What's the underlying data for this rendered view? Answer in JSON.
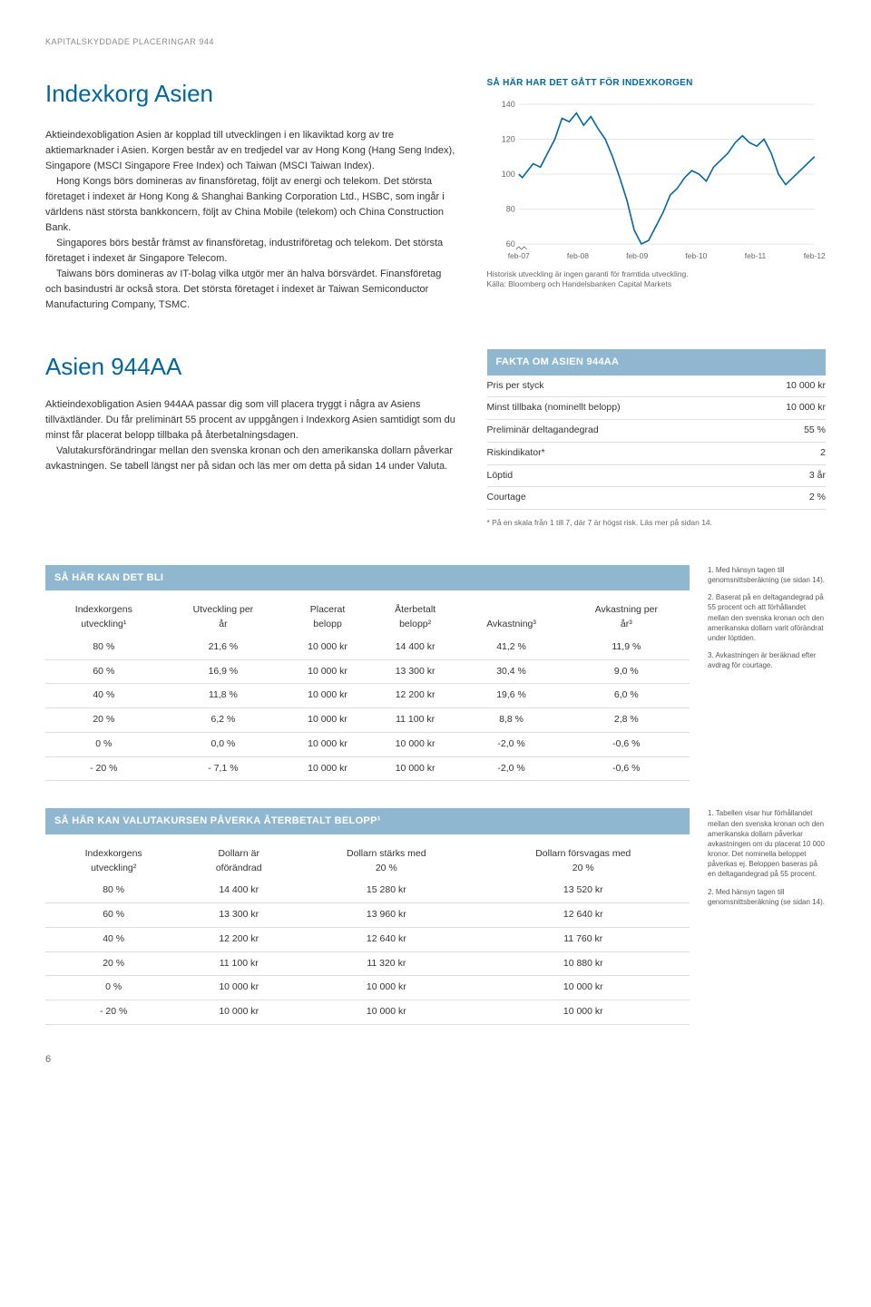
{
  "header": "KAPITALSKYDDADE PLACERINGAR 944",
  "top": {
    "title": "Indexkorg Asien",
    "p1": "Aktieindexobligation Asien är kopplad till utvecklingen i en likaviktad korg av tre aktiemarknader i Asien. Korgen består av en tredjedel var av Hong Kong (Hang Seng Index), Singapore (MSCI Singapore Free Index) och Taiwan (MSCI Taiwan Index).",
    "p2": "Hong Kongs börs domineras av finansföretag, följt av energi och telekom. Det största företaget i indexet är Hong Kong & Shanghai Banking Corporation Ltd., HSBC, som ingår i världens näst största bankkoncern, följt av China Mobile (telekom) och China Construction Bank.",
    "p3": "Singapores börs består främst av finansföretag, industriföretag och telekom. Det största företaget i indexet är Singapore Telecom.",
    "p4": "Taiwans börs domineras av IT-bolag vilka utgör mer än halva börsvärdet. Finansföretag och basindustri är också stora. Det största företaget i indexet är Taiwan Semiconductor Manufacturing Company, TSMC."
  },
  "chart": {
    "label": "SÅ HÄR HAR DET GÅTT FÖR INDEXKORGEN",
    "y_ticks": [
      60,
      80,
      100,
      120,
      140
    ],
    "x_labels": [
      "feb-07",
      "feb-08",
      "feb-09",
      "feb-10",
      "feb-11",
      "feb-12"
    ],
    "line_color": "#0066a4",
    "grid_color": "#cccccc",
    "points": [
      [
        0,
        100
      ],
      [
        2,
        98
      ],
      [
        5,
        102
      ],
      [
        8,
        106
      ],
      [
        12,
        104
      ],
      [
        16,
        112
      ],
      [
        20,
        120
      ],
      [
        24,
        132
      ],
      [
        28,
        130
      ],
      [
        32,
        135
      ],
      [
        36,
        128
      ],
      [
        40,
        133
      ],
      [
        44,
        126
      ],
      [
        48,
        120
      ],
      [
        52,
        110
      ],
      [
        56,
        98
      ],
      [
        60,
        85
      ],
      [
        64,
        68
      ],
      [
        68,
        60
      ],
      [
        72,
        62
      ],
      [
        76,
        70
      ],
      [
        80,
        78
      ],
      [
        84,
        88
      ],
      [
        88,
        92
      ],
      [
        92,
        98
      ],
      [
        96,
        102
      ],
      [
        100,
        100
      ],
      [
        104,
        96
      ],
      [
        108,
        104
      ],
      [
        112,
        108
      ],
      [
        116,
        112
      ],
      [
        120,
        118
      ],
      [
        124,
        122
      ],
      [
        128,
        118
      ],
      [
        132,
        116
      ],
      [
        136,
        120
      ],
      [
        140,
        112
      ],
      [
        144,
        100
      ],
      [
        148,
        94
      ],
      [
        152,
        98
      ],
      [
        156,
        102
      ],
      [
        160,
        106
      ],
      [
        164,
        110
      ]
    ],
    "caption1": "Historisk utveckling är ingen garanti för framtida utveckling.",
    "caption2": "Källa: Bloomberg och Handelsbanken Capital Markets"
  },
  "mid": {
    "title": "Asien 944AA",
    "p1": "Aktieindexobligation Asien 944AA passar dig som vill placera tryggt i några av Asiens tillväxtländer. Du får preliminärt 55 procent av uppgången i Indexkorg Asien samtidigt som du minst får placerat belopp tillbaka på återbetalningsdagen.",
    "p2": "Valutakursförändringar mellan den svenska kronan och den amerikanska dollarn påverkar avkastningen. Se tabell längst ner på sidan och läs mer om detta på sidan 14 under Valuta."
  },
  "facts": {
    "header": "FAKTA OM ASIEN 944AA",
    "rows": [
      {
        "label": "Pris per styck",
        "value": "10 000 kr"
      },
      {
        "label": "Minst tillbaka (nominellt belopp)",
        "value": "10 000 kr"
      },
      {
        "label": "Preliminär deltagandegrad",
        "value": "55 %"
      },
      {
        "label": "Riskindikator*",
        "value": "2"
      },
      {
        "label": "Löptid",
        "value": "3 år"
      },
      {
        "label": "Courtage",
        "value": "2 %"
      }
    ],
    "note": "* På en skala från 1 till 7, där 7 är högst risk. Läs mer på sidan 14."
  },
  "table1": {
    "header": "SÅ HÄR KAN DET BLI",
    "columns": [
      "Indexkorgens utveckling¹",
      "Utveckling per år",
      "Placerat belopp",
      "Återbetalt belopp²",
      "Avkastning³",
      "Avkastning per år³"
    ],
    "rows": [
      [
        "80 %",
        "21,6 %",
        "10 000 kr",
        "14 400 kr",
        "41,2 %",
        "11,9 %"
      ],
      [
        "60 %",
        "16,9 %",
        "10 000 kr",
        "13 300 kr",
        "30,4 %",
        "9,0 %"
      ],
      [
        "40 %",
        "11,8 %",
        "10 000 kr",
        "12 200 kr",
        "19,6 %",
        "6,0 %"
      ],
      [
        "20 %",
        "6,2 %",
        "10 000 kr",
        "11 100 kr",
        "8,8 %",
        "2,8 %"
      ],
      [
        "0 %",
        "0,0 %",
        "10 000 kr",
        "10 000 kr",
        "-2,0 %",
        "-0,6 %"
      ],
      [
        "- 20 %",
        "- 7,1 %",
        "10 000 kr",
        "10 000 kr",
        "-2,0 %",
        "-0,6 %"
      ]
    ],
    "notes": [
      "1. Med hänsyn tagen till genomsnittsberäkning (se sidan 14).",
      "2. Baserat på en deltagandegrad på 55 procent och att förhållandet mellan den svenska kronan och den amerikanska dollarn varit oförändrat under löptiden.",
      "3. Avkastningen är beräknad efter avdrag för courtage."
    ]
  },
  "table2": {
    "header": "SÅ HÄR KAN VALUTAKURSEN PÅVERKA ÅTERBETALT BELOPP¹",
    "columns": [
      "Indexkorgens utveckling²",
      "Dollarn är oförändrad",
      "Dollarn stärks med 20 %",
      "Dollarn försvagas med 20 %"
    ],
    "rows": [
      [
        "80 %",
        "14 400 kr",
        "15 280 kr",
        "13 520 kr"
      ],
      [
        "60 %",
        "13 300 kr",
        "13 960 kr",
        "12 640 kr"
      ],
      [
        "40 %",
        "12 200 kr",
        "12 640 kr",
        "11 760 kr"
      ],
      [
        "20 %",
        "11 100 kr",
        "11 320 kr",
        "10 880 kr"
      ],
      [
        "0 %",
        "10 000 kr",
        "10 000 kr",
        "10 000 kr"
      ],
      [
        "- 20 %",
        "10 000 kr",
        "10 000 kr",
        "10 000 kr"
      ]
    ],
    "notes": [
      "1. Tabellen visar hur förhållandet mellan den svenska kronan och den amerikanska dollarn påverkar avkastningen om du placerat 10 000 kronor. Det nominella beloppet påverkas ej. Beloppen baseras på en deltagandegrad på 55 procent.",
      "2. Med hänsyn tagen till genomsnittsberäkning (se sidan 14)."
    ]
  },
  "page": "6"
}
